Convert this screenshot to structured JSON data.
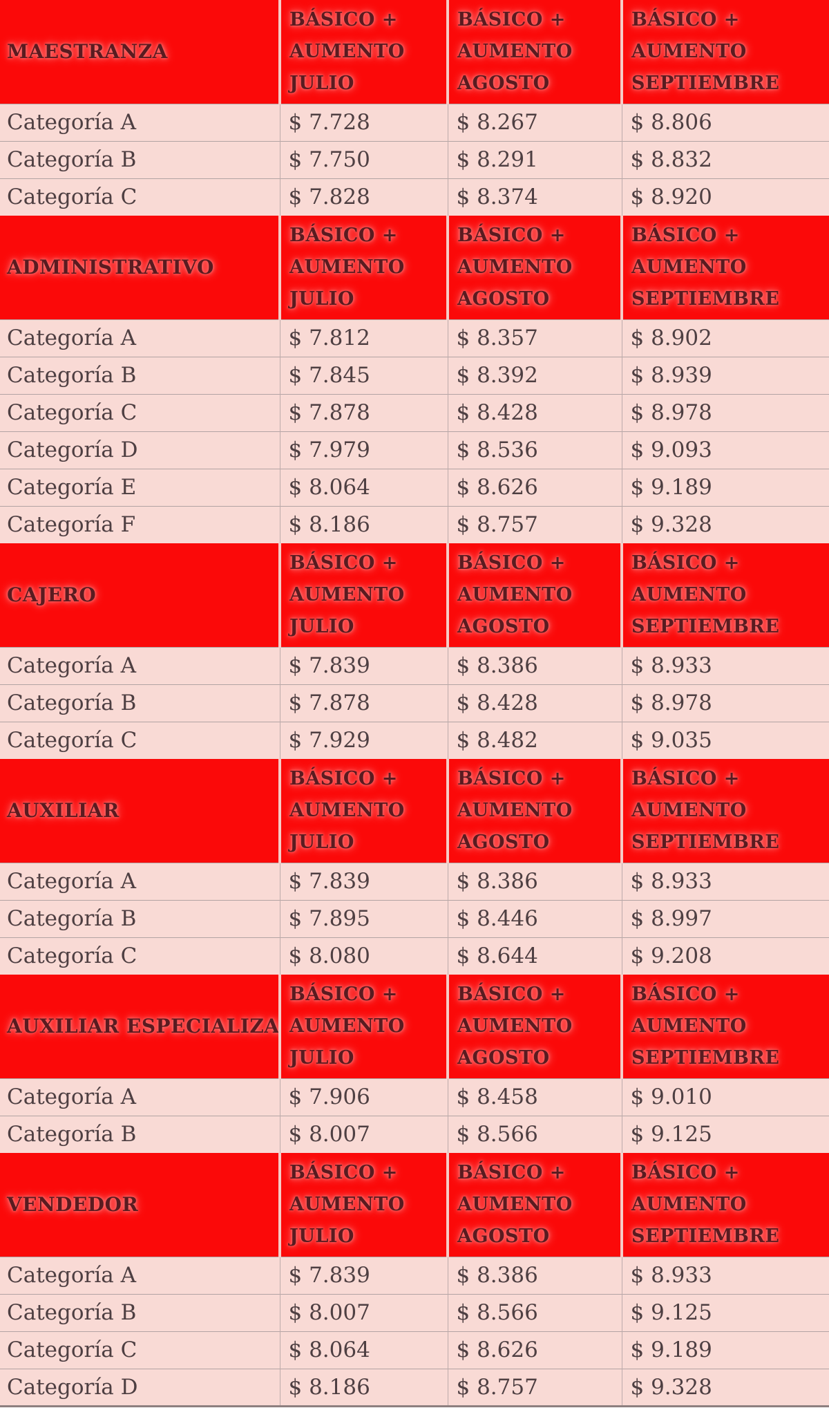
{
  "colors": {
    "header_bg": "#fb0909",
    "header_text": "#5a1b20",
    "row_bg": "#f9dad5",
    "row_text": "#4e3f42",
    "grid_line": "#b2a3a3"
  },
  "chart_data": {
    "type": "table",
    "column_headers": [
      "BÁSICO + AUMENTO JULIO",
      "BÁSICO + AUMENTO AGOSTO",
      "BÁSICO + AUMENTO SEPTIEMBRE"
    ],
    "column_header_lines": [
      [
        "BÁSICO +",
        "AUMENTO",
        "JULIO"
      ],
      [
        "BÁSICO +",
        "AUMENTO",
        "AGOSTO"
      ],
      [
        "BÁSICO +",
        "AUMENTO",
        "SEPTIEMBRE"
      ]
    ],
    "sections": [
      {
        "name": "MAESTRANZA",
        "rows": [
          [
            "Categoría A",
            "$ 7.728",
            "$ 8.267",
            "$ 8.806"
          ],
          [
            "Categoría B",
            "$ 7.750",
            "$ 8.291",
            "$ 8.832"
          ],
          [
            "Categoría C",
            "$ 7.828",
            "$ 8.374",
            "$ 8.920"
          ]
        ]
      },
      {
        "name": "ADMINISTRATIVO",
        "rows": [
          [
            "Categoría A",
            "$ 7.812",
            "$ 8.357",
            "$ 8.902"
          ],
          [
            "Categoría B",
            "$ 7.845",
            "$ 8.392",
            "$ 8.939"
          ],
          [
            "Categoría C",
            "$ 7.878",
            "$ 8.428",
            "$ 8.978"
          ],
          [
            "Categoría D",
            "$ 7.979",
            "$ 8.536",
            "$ 9.093"
          ],
          [
            "Categoría E",
            "$ 8.064",
            "$ 8.626",
            "$ 9.189"
          ],
          [
            "Categoría F",
            "$ 8.186",
            "$ 8.757",
            "$ 9.328"
          ]
        ]
      },
      {
        "name": "CAJERO",
        "rows": [
          [
            "Categoría A",
            "$ 7.839",
            "$ 8.386",
            "$ 8.933"
          ],
          [
            "Categoría B",
            "$ 7.878",
            "$ 8.428",
            "$ 8.978"
          ],
          [
            "Categoría C",
            "$ 7.929",
            "$ 8.482",
            "$ 9.035"
          ]
        ]
      },
      {
        "name": "AUXILIAR",
        "rows": [
          [
            "Categoría A",
            "$ 7.839",
            "$ 8.386",
            "$ 8.933"
          ],
          [
            "Categoría B",
            "$ 7.895",
            "$ 8.446",
            "$ 8.997"
          ],
          [
            "Categoría C",
            "$ 8.080",
            "$ 8.644",
            "$ 9.208"
          ]
        ]
      },
      {
        "name": "AUXILIAR ESPECIALIZADO",
        "rows": [
          [
            "Categoría A",
            "$ 7.906",
            "$ 8.458",
            "$ 9.010"
          ],
          [
            "Categoría B",
            "$ 8.007",
            "$ 8.566",
            "$ 9.125"
          ]
        ]
      },
      {
        "name": "VENDEDOR",
        "rows": [
          [
            "Categoría A",
            "$ 7.839",
            "$ 8.386",
            "$ 8.933"
          ],
          [
            "Categoría B",
            "$ 8.007",
            "$ 8.566",
            "$ 9.125"
          ],
          [
            "Categoría C",
            "$ 8.064",
            "$ 8.626",
            "$ 9.189"
          ],
          [
            "Categoría D",
            "$ 8.186",
            "$ 8.757",
            "$ 9.328"
          ]
        ]
      }
    ]
  }
}
